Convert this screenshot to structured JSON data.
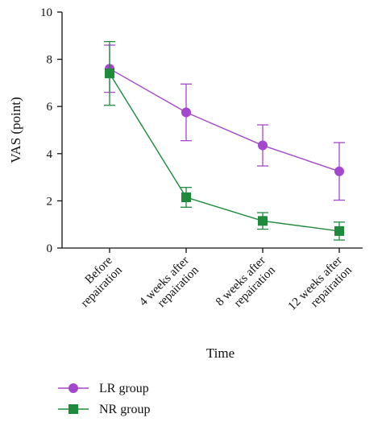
{
  "chart_data": {
    "type": "line",
    "xlabel": "Time",
    "ylabel": "VAS (point)",
    "ylim": [
      0,
      10
    ],
    "yticks": [
      0,
      2,
      4,
      6,
      8,
      10
    ],
    "categories": [
      [
        "Before",
        "repairation"
      ],
      [
        "4 weeks after",
        "repairation"
      ],
      [
        "8 weeks after",
        "repairation"
      ],
      [
        "12 weeks after",
        "repairation"
      ]
    ],
    "series": [
      {
        "name": "LR group",
        "marker": "circle",
        "color": "#a347cc",
        "values": [
          7.6,
          5.75,
          4.35,
          3.25
        ],
        "error": [
          1.0,
          1.2,
          0.87,
          1.22
        ]
      },
      {
        "name": "NR group",
        "marker": "square",
        "color": "#1e8a3c",
        "values": [
          7.4,
          2.15,
          1.15,
          0.72
        ],
        "error": [
          1.35,
          0.42,
          0.35,
          0.38
        ]
      }
    ],
    "grid": false,
    "legend_position": "bottom-left"
  }
}
